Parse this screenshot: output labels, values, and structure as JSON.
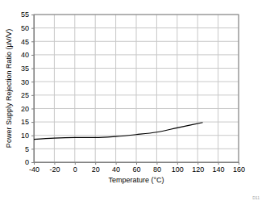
{
  "chart_data": {
    "type": "line",
    "xlabel": "Temperature (°C)",
    "ylabel": "Power Supply Rejection Ratio (µV/V)",
    "annotation": "D11",
    "x": [
      -40,
      -20,
      0,
      20,
      40,
      60,
      80,
      100,
      125
    ],
    "values": [
      8.5,
      9.0,
      9.2,
      9.2,
      9.6,
      10.3,
      11.2,
      12.8,
      14.8
    ],
    "color": "#000000",
    "xlim": [
      -40,
      160
    ],
    "xticks": [
      -40,
      -20,
      0,
      20,
      40,
      60,
      80,
      100,
      120,
      140,
      160
    ],
    "ylim": [
      0,
      55
    ],
    "yticks": [
      0,
      5,
      10,
      15,
      20,
      25,
      30,
      35,
      40,
      45,
      50,
      55
    ],
    "grid": true
  }
}
